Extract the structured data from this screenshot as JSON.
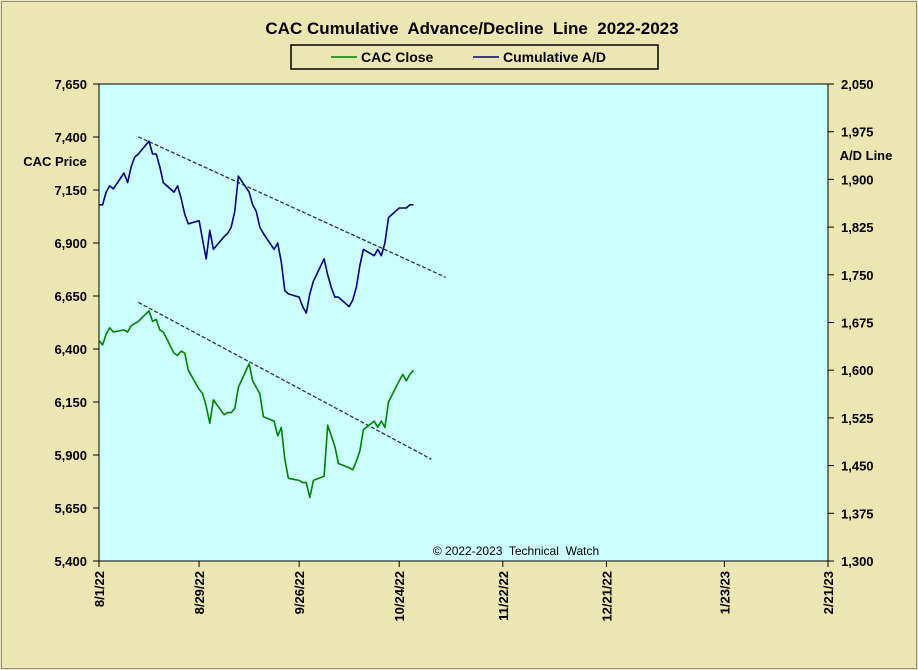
{
  "chart_data": {
    "type": "line",
    "title": "CAC Cumulative  Advance/Decline  Line  2022-2023",
    "legend": {
      "placement": "top-center",
      "entries": [
        {
          "label": "CAC Close",
          "color": "#008000"
        },
        {
          "label": "Cumulative A/D",
          "color": "#000080"
        }
      ]
    },
    "watermark": "© 2022-2023  Technical  Watch",
    "colors": {
      "outer_bg": "#ECE6B3",
      "plot_bg": "#CCFFFF",
      "close": "#008000",
      "ad": "#000080",
      "trend": "#333333"
    },
    "left_axis": {
      "label": "CAC Price",
      "ylim": [
        5400,
        7650
      ],
      "ticks": [
        "5,400",
        "5,650",
        "5,900",
        "6,150",
        "6,400",
        "6,650",
        "6,900",
        "7,150",
        "7,400",
        "7,650"
      ]
    },
    "right_axis": {
      "label": "A/D Line",
      "ylim": [
        1300,
        2050
      ],
      "ticks": [
        "1,300",
        "1,375",
        "1,450",
        "1,525",
        "1,600",
        "1,675",
        "1,750",
        "1,825",
        "1,900",
        "1,975",
        "2,050"
      ]
    },
    "x_axis": {
      "range": [
        "2022-08-01",
        "2023-02-21"
      ],
      "tick_dates": [
        "2022-08-01",
        "2022-08-29",
        "2022-09-26",
        "2022-10-24",
        "2022-11-22",
        "2022-12-21",
        "2023-01-23",
        "2023-02-21"
      ],
      "tick_labels": [
        "8/1/22",
        "8/29/22",
        "9/26/22",
        "10/24/22",
        "11/22/22",
        "12/21/22",
        "1/23/23",
        "2/21/23"
      ]
    },
    "series": [
      {
        "name": "CAC Close",
        "axis": "left",
        "x": [
          "2022-08-01",
          "2022-08-02",
          "2022-08-03",
          "2022-08-04",
          "2022-08-05",
          "2022-08-08",
          "2022-08-09",
          "2022-08-10",
          "2022-08-11",
          "2022-08-12",
          "2022-08-15",
          "2022-08-16",
          "2022-08-17",
          "2022-08-18",
          "2022-08-19",
          "2022-08-22",
          "2022-08-23",
          "2022-08-24",
          "2022-08-25",
          "2022-08-26",
          "2022-08-29",
          "2022-08-30",
          "2022-08-31",
          "2022-09-01",
          "2022-09-02",
          "2022-09-05",
          "2022-09-06",
          "2022-09-07",
          "2022-09-08",
          "2022-09-09",
          "2022-09-12",
          "2022-09-13",
          "2022-09-14",
          "2022-09-15",
          "2022-09-16",
          "2022-09-19",
          "2022-09-20",
          "2022-09-21",
          "2022-09-22",
          "2022-09-23",
          "2022-09-26",
          "2022-09-27",
          "2022-09-28",
          "2022-09-29",
          "2022-09-30",
          "2022-10-03",
          "2022-10-04",
          "2022-10-05",
          "2022-10-06",
          "2022-10-07",
          "2022-10-10",
          "2022-10-11",
          "2022-10-12",
          "2022-10-13",
          "2022-10-14",
          "2022-10-17",
          "2022-10-18",
          "2022-10-19",
          "2022-10-20",
          "2022-10-21",
          "2022-10-24",
          "2022-10-25",
          "2022-10-26",
          "2022-10-27",
          "2022-10-28"
        ],
        "values": [
          6440,
          6420,
          6470,
          6500,
          6480,
          6490,
          6480,
          6510,
          6520,
          6530,
          6580,
          6530,
          6540,
          6490,
          6480,
          6380,
          6370,
          6390,
          6380,
          6300,
          6210,
          6190,
          6130,
          6050,
          6160,
          6090,
          6100,
          6100,
          6120,
          6220,
          6330,
          6250,
          6220,
          6190,
          6080,
          6060,
          5990,
          6030,
          5880,
          5790,
          5780,
          5770,
          5770,
          5700,
          5780,
          5800,
          6040,
          5990,
          5940,
          5860,
          5840,
          5830,
          5870,
          5920,
          6020,
          6060,
          6030,
          6060,
          6030,
          6150,
          6250,
          6280,
          6250,
          6280,
          6300
        ]
      },
      {
        "name": "Cumulative A/D",
        "axis": "right",
        "x": [
          "2022-08-01",
          "2022-08-02",
          "2022-08-03",
          "2022-08-04",
          "2022-08-05",
          "2022-08-08",
          "2022-08-09",
          "2022-08-10",
          "2022-08-11",
          "2022-08-12",
          "2022-08-15",
          "2022-08-16",
          "2022-08-17",
          "2022-08-18",
          "2022-08-19",
          "2022-08-22",
          "2022-08-23",
          "2022-08-24",
          "2022-08-25",
          "2022-08-26",
          "2022-08-29",
          "2022-08-30",
          "2022-08-31",
          "2022-09-01",
          "2022-09-02",
          "2022-09-05",
          "2022-09-06",
          "2022-09-07",
          "2022-09-08",
          "2022-09-09",
          "2022-09-12",
          "2022-09-13",
          "2022-09-14",
          "2022-09-15",
          "2022-09-16",
          "2022-09-19",
          "2022-09-20",
          "2022-09-21",
          "2022-09-22",
          "2022-09-23",
          "2022-09-26",
          "2022-09-27",
          "2022-09-28",
          "2022-09-29",
          "2022-09-30",
          "2022-10-03",
          "2022-10-04",
          "2022-10-05",
          "2022-10-06",
          "2022-10-07",
          "2022-10-10",
          "2022-10-11",
          "2022-10-12",
          "2022-10-13",
          "2022-10-14",
          "2022-10-17",
          "2022-10-18",
          "2022-10-19",
          "2022-10-20",
          "2022-10-21",
          "2022-10-24",
          "2022-10-25",
          "2022-10-26",
          "2022-10-27",
          "2022-10-28"
        ],
        "values": [
          1860,
          1860,
          1880,
          1890,
          1885,
          1910,
          1895,
          1920,
          1935,
          1940,
          1960,
          1940,
          1940,
          1920,
          1895,
          1880,
          1890,
          1870,
          1845,
          1830,
          1835,
          1805,
          1775,
          1820,
          1790,
          1810,
          1815,
          1825,
          1850,
          1905,
          1880,
          1860,
          1850,
          1825,
          1815,
          1790,
          1800,
          1770,
          1725,
          1720,
          1715,
          1700,
          1690,
          1720,
          1740,
          1775,
          1750,
          1730,
          1715,
          1715,
          1700,
          1710,
          1730,
          1765,
          1790,
          1780,
          1790,
          1780,
          1800,
          1840,
          1855,
          1855,
          1855,
          1860,
          1860
        ]
      }
    ],
    "trendlines": [
      {
        "series": "Cumulative A/D",
        "from": {
          "x": "2022-08-12",
          "y": 1967
        },
        "to": {
          "x": "2022-11-06",
          "y": 1746
        }
      },
      {
        "series": "CAC Close",
        "from": {
          "x": "2022-08-12",
          "y": 6620
        },
        "to": {
          "x": "2022-11-02",
          "y": 5880
        }
      }
    ]
  }
}
